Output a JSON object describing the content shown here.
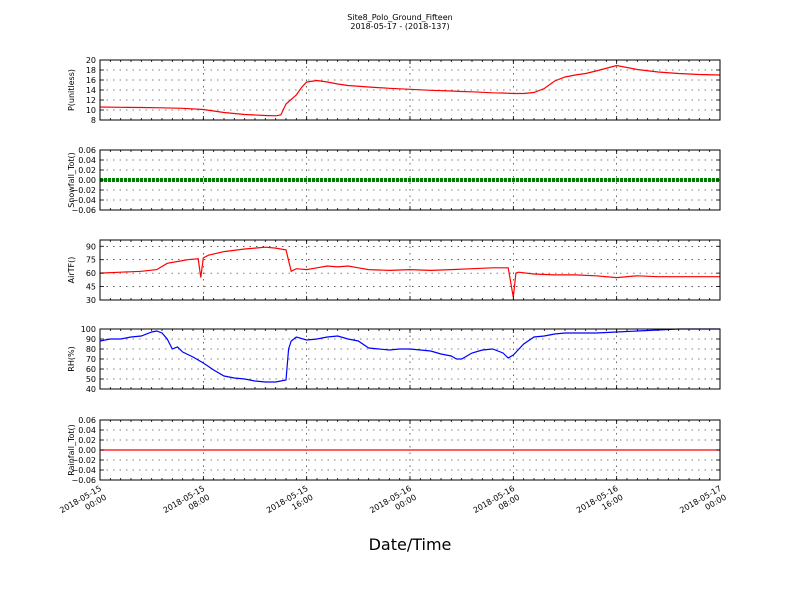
{
  "title_line1": "Site8_Polo_Ground_Fifteen",
  "title_line2": "2018-05-17 - (2018-137)",
  "xlabel": "Date/Time",
  "x_tick_labels": [
    [
      "2018-05-15",
      "00:00"
    ],
    [
      "2018-05-15",
      "08:00"
    ],
    [
      "2018-05-15",
      "16:00"
    ],
    [
      "2018-05-16",
      "00:00"
    ],
    [
      "2018-05-16",
      "08:00"
    ],
    [
      "2018-05-16",
      "16:00"
    ],
    [
      "2018-05-17",
      "00:00"
    ]
  ],
  "chart_data": [
    {
      "type": "line",
      "ylabel": "P(unitless)",
      "ylim": [
        8,
        20
      ],
      "yticks": [
        "8",
        "10",
        "12",
        "14",
        "16",
        "18",
        "20"
      ],
      "color": "#ff0000",
      "series": [
        {
          "x": [
            0,
            4,
            8,
            12,
            16,
            20,
            24,
            28,
            32,
            34,
            35,
            36,
            38,
            39,
            40,
            42,
            44,
            46,
            48,
            52,
            56,
            60,
            64,
            68,
            70,
            72,
            74,
            76,
            78,
            80,
            82,
            84,
            86,
            88,
            90,
            92,
            94,
            96,
            100,
            104,
            108,
            112,
            116,
            120
          ],
          "values": [
            10.6,
            10.55,
            10.5,
            10.45,
            10.35,
            10.1,
            9.5,
            9.1,
            8.9,
            8.85,
            9.0,
            11.2,
            13.0,
            14.5,
            15.6,
            15.9,
            15.6,
            15.2,
            14.9,
            14.6,
            14.35,
            14.15,
            13.95,
            13.8,
            13.7,
            13.65,
            13.55,
            13.45,
            13.4,
            13.3,
            13.3,
            13.5,
            14.3,
            15.8,
            16.6,
            17.0,
            17.3,
            17.8,
            18.9,
            18.1,
            17.6,
            17.3,
            17.1,
            17.0
          ]
        }
      ]
    },
    {
      "type": "line",
      "ylabel": "Snowfall_Tot()",
      "ylim": [
        -0.06,
        0.06
      ],
      "yticks": [
        "−0.06",
        "−0.04",
        "−0.02",
        "0.00",
        "0.02",
        "0.04",
        "0.06"
      ],
      "color": "#008000",
      "series": [
        {
          "x": [
            0,
            120
          ],
          "values": [
            0,
            0
          ]
        }
      ]
    },
    {
      "type": "line",
      "ylabel": "AirTF()",
      "ylim": [
        30,
        97
      ],
      "yticks": [
        "30",
        "45",
        "60",
        "75",
        "90"
      ],
      "color": "#ff0000",
      "series": [
        {
          "x": [
            0,
            4,
            8,
            11,
            13,
            15,
            17,
            19,
            19.5,
            20,
            21,
            24,
            28,
            30,
            32,
            34,
            36,
            37,
            38,
            40,
            42,
            44,
            46,
            48,
            50,
            52,
            56,
            60,
            64,
            68,
            72,
            76,
            79,
            80,
            80.5,
            81,
            84,
            88,
            92,
            96,
            100,
            104,
            108,
            112,
            116,
            120
          ],
          "values": [
            60,
            61,
            62,
            64,
            71,
            73,
            75,
            76,
            55,
            77,
            80,
            84,
            87,
            88,
            89,
            88,
            86,
            62,
            65,
            64,
            66,
            68,
            67,
            68,
            66,
            64,
            63,
            64,
            63,
            64,
            65,
            66,
            66,
            33,
            60,
            61,
            59,
            58,
            58,
            57,
            55,
            57,
            56,
            56,
            56,
            56
          ]
        }
      ]
    },
    {
      "type": "line",
      "ylabel": "RH(%)",
      "ylim": [
        40,
        100
      ],
      "yticks": [
        "40",
        "50",
        "60",
        "70",
        "80",
        "90",
        "100"
      ],
      "color": "#0000ff",
      "series": [
        {
          "x": [
            0,
            2,
            4,
            6,
            8,
            10,
            11,
            12,
            13,
            14,
            15,
            16,
            18,
            20,
            22,
            24,
            26,
            28,
            30,
            32,
            34,
            36,
            36.5,
            37,
            38,
            40,
            42,
            44,
            46,
            48,
            50,
            52,
            54,
            56,
            58,
            60,
            62,
            64,
            66,
            68,
            69,
            70,
            72,
            74,
            76,
            78,
            79,
            80,
            82,
            84,
            86,
            88,
            90,
            92,
            96,
            100,
            104,
            108,
            112,
            116,
            120
          ],
          "values": [
            88,
            90,
            90,
            92,
            93,
            97,
            98,
            96,
            90,
            80,
            82,
            77,
            72,
            66,
            59,
            53,
            51,
            50,
            48,
            47,
            47,
            49,
            80,
            88,
            92,
            89,
            90,
            92,
            93,
            90,
            88,
            81,
            80,
            79,
            80,
            80,
            79,
            78,
            75,
            73,
            70,
            70,
            76,
            79,
            80,
            76,
            71,
            74,
            85,
            92,
            93,
            95,
            96,
            96,
            96,
            97,
            98,
            99,
            100,
            100,
            100
          ]
        }
      ]
    },
    {
      "type": "line",
      "ylabel": "Rainfall_Tot()",
      "ylim": [
        -0.06,
        0.06
      ],
      "yticks": [
        "−0.06",
        "−0.04",
        "−0.02",
        "0.00",
        "0.02",
        "0.04",
        "0.06"
      ],
      "color": "#ff0000",
      "series": [
        {
          "x": [
            0,
            120
          ],
          "values": [
            0,
            0
          ]
        }
      ]
    }
  ]
}
